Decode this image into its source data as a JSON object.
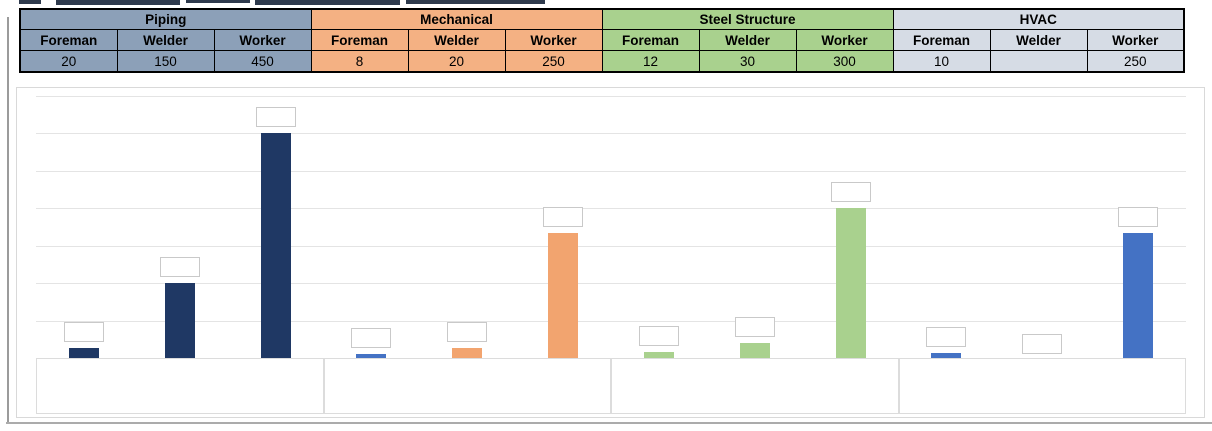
{
  "table": {
    "groups": [
      {
        "label": "Piping",
        "color": "#8CA0B8",
        "columns": [
          {
            "label": "Foreman",
            "value": "20"
          },
          {
            "label": "Welder",
            "value": "150"
          },
          {
            "label": "Worker",
            "value": "450"
          }
        ]
      },
      {
        "label": "Mechanical",
        "color": "#F4B183",
        "columns": [
          {
            "label": "Foreman",
            "value": "8"
          },
          {
            "label": "Welder",
            "value": "20"
          },
          {
            "label": "Worker",
            "value": "250"
          }
        ]
      },
      {
        "label": "Steel Structure",
        "color": "#A9D18E",
        "columns": [
          {
            "label": "Foreman",
            "value": "12"
          },
          {
            "label": "Welder",
            "value": "30"
          },
          {
            "label": "Worker",
            "value": "300"
          }
        ]
      },
      {
        "label": "HVAC",
        "color": "#D6DCE5",
        "columns": [
          {
            "label": "Foreman",
            "value": "10"
          },
          {
            "label": "Welder",
            "value": ""
          },
          {
            "label": "Worker",
            "value": "250"
          }
        ]
      }
    ]
  },
  "chart_data": {
    "type": "bar",
    "title": "",
    "categories": [
      "Piping",
      "Mechanical",
      "Steel Structure",
      "HVAC"
    ],
    "series": [
      {
        "name": "Foreman",
        "values": [
          20,
          8,
          12,
          10
        ]
      },
      {
        "name": "Welder",
        "values": [
          150,
          20,
          30,
          null
        ]
      },
      {
        "name": "Worker",
        "values": [
          450,
          250,
          300,
          250
        ]
      }
    ],
    "bar_colors": [
      [
        "#1F3864",
        "#1F3864",
        "#1F3864"
      ],
      [
        "#4472C4",
        "#F2A46F",
        "#F2A46F"
      ],
      [
        "#A9D18E",
        "#A9D18E",
        "#A9D18E"
      ],
      [
        "#4472C4",
        null,
        "#4472C4"
      ]
    ],
    "xlabel": "",
    "ylabel": "",
    "ylim": [
      0,
      525
    ],
    "gridline_step": 75,
    "grid": true,
    "legend": "none",
    "data_labels": "empty-boxes",
    "category_labels": "empty-boxes"
  },
  "colors": {
    "navy": "#1F3864",
    "orange": "#F2A46F",
    "green": "#A9D18E",
    "blue": "#4472C4",
    "grid": "#E4E4E4",
    "chart_border": "#D9D9D9",
    "label_box_border": "#C9C9C9",
    "table_border": "#000000"
  }
}
